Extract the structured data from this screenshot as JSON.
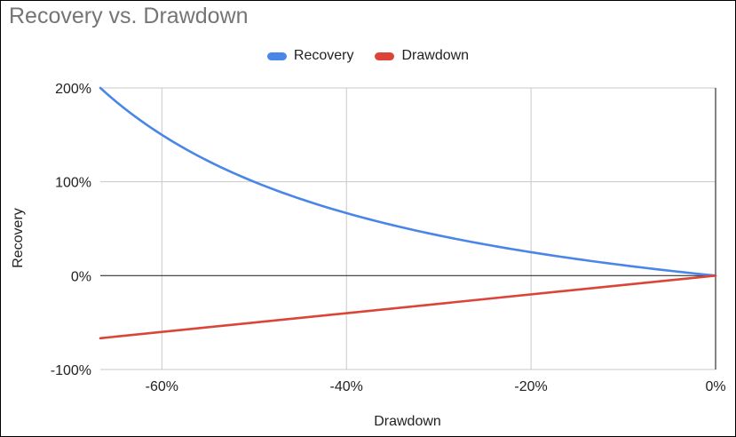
{
  "chart_data": {
    "type": "line",
    "title": "Recovery vs. Drawdown",
    "xlabel": "Drawdown",
    "ylabel": "Recovery",
    "xlim": [
      -0.6667,
      0
    ],
    "ylim": [
      -1,
      2
    ],
    "x_ticks": [
      -0.6,
      -0.4,
      -0.2,
      0
    ],
    "x_tick_labels": [
      "-60%",
      "-40%",
      "-20%",
      "0%"
    ],
    "y_ticks": [
      -1,
      0,
      1,
      2
    ],
    "y_tick_labels": [
      "-100%",
      "0%",
      "100%",
      "200%"
    ],
    "grid": true,
    "legend_position": "top",
    "series": [
      {
        "name": "Recovery",
        "color": "#4a86e8",
        "x": [
          -0.6667,
          -0.65,
          -0.6,
          -0.55,
          -0.5,
          -0.45,
          -0.4,
          -0.35,
          -0.3,
          -0.25,
          -0.2,
          -0.15,
          -0.1,
          -0.05,
          0
        ],
        "y": [
          2.0,
          1.857,
          1.5,
          1.222,
          1.0,
          0.818,
          0.667,
          0.538,
          0.429,
          0.333,
          0.25,
          0.176,
          0.111,
          0.053,
          0
        ]
      },
      {
        "name": "Drawdown",
        "color": "#db4437",
        "x": [
          -0.6667,
          0
        ],
        "y": [
          -0.6667,
          0
        ]
      }
    ]
  }
}
